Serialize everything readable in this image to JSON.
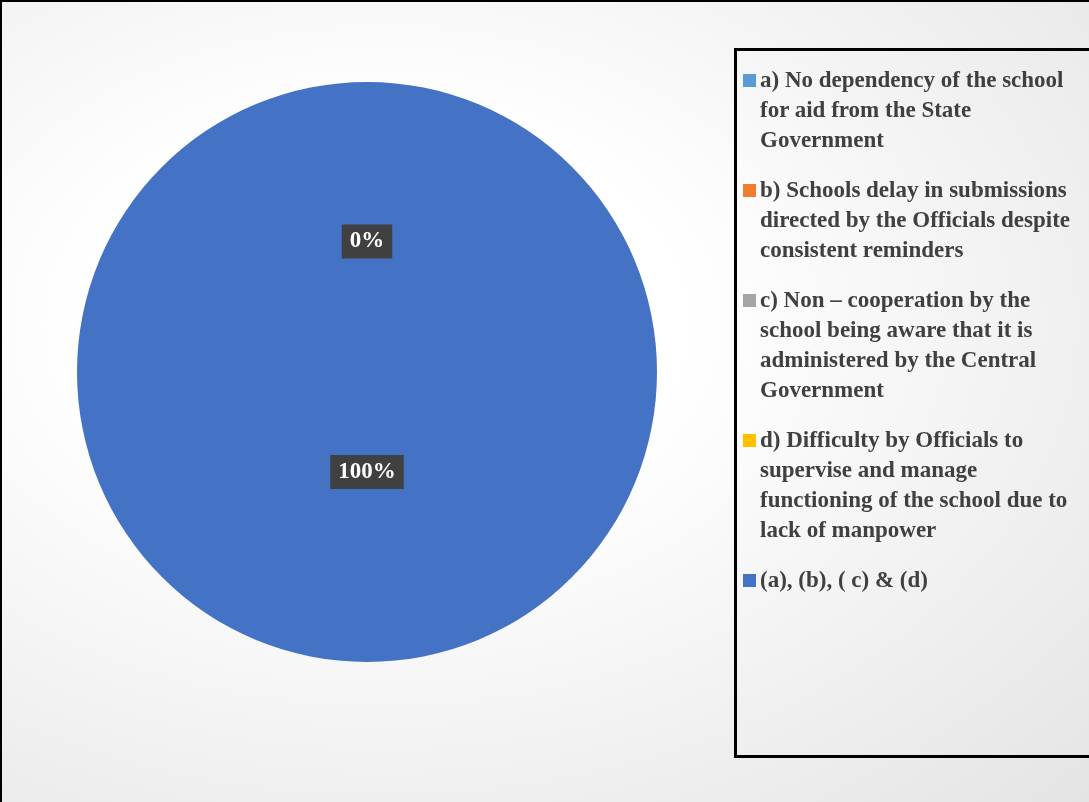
{
  "chart_data": {
    "type": "pie",
    "categories": [
      "a) No dependency of the school for aid from the State Government",
      "b) Schools delay in submissions directed by the Officials despite consistent reminders",
      "c) Non – cooperation by the school being aware that it is administered by the Central Government",
      "d) Difficulty by Officials to supervise and manage functioning of the school due to lack of manpower",
      "(a), (b), ( c) & (d)"
    ],
    "values": [
      0,
      0,
      0,
      0,
      100
    ],
    "colors": [
      "#5b9bd5",
      "#ed7d31",
      "#a5a5a5",
      "#ffc000",
      "#4472c4"
    ],
    "value_labels": [
      "0%",
      null,
      null,
      null,
      "100%"
    ],
    "legend": "right"
  }
}
